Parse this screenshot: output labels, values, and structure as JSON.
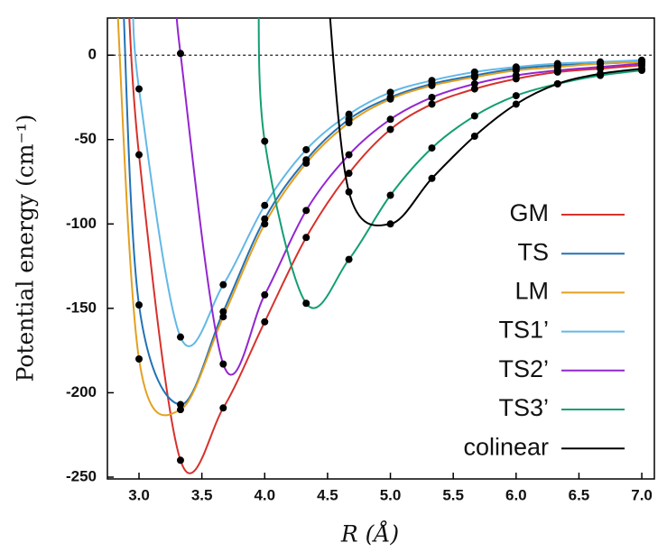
{
  "chart_data": {
    "type": "line",
    "xlabel": "R (Å)",
    "ylabel": "Potential energy (cm⁻¹)",
    "xlim": [
      2.75,
      7.1
    ],
    "ylim": [
      -250,
      22
    ],
    "xticks": [
      {
        "value": 3,
        "label": "3.0"
      },
      3.5,
      {
        "value": 4,
        "label": "4.0"
      },
      4.5,
      {
        "value": 5,
        "label": "5.0"
      },
      5.5,
      {
        "value": 6,
        "label": "6.0"
      },
      6.5,
      {
        "value": 7,
        "label": "7.0"
      }
    ],
    "yticks": [
      0,
      -50,
      -100,
      -150,
      -200,
      -250
    ],
    "zero_line": true,
    "legend": "lower right",
    "series": [
      {
        "name": "GM",
        "color": "#d7312b",
        "x": [
          2.9,
          3.0,
          3.33,
          3.67,
          4.0,
          4.33,
          4.67,
          5.0,
          5.33,
          5.67,
          6.0,
          6.33,
          6.67,
          7.0
        ],
        "values": [
          60,
          -59,
          -240,
          -209,
          -158,
          -108,
          -70,
          -44,
          -29,
          -20,
          -14,
          -10,
          -8,
          -6
        ]
      },
      {
        "name": "TS",
        "color": "#2372b5",
        "x": [
          2.87,
          3.0,
          3.33,
          3.67,
          4.0,
          4.33,
          4.67,
          5.0,
          5.33,
          5.67,
          6.0,
          6.33,
          6.67,
          7.0
        ],
        "values": [
          40,
          -148,
          -207,
          -152,
          -97,
          -62,
          -38,
          -25,
          -17,
          -12,
          -8,
          -6,
          -5,
          -4
        ]
      },
      {
        "name": "LM",
        "color": "#e3a020",
        "x": [
          2.82,
          3.0,
          3.33,
          3.67,
          4.0,
          4.33,
          4.67,
          5.0,
          5.33,
          5.67,
          6.0,
          6.33,
          6.67,
          7.0
        ],
        "values": [
          40,
          -180,
          -210,
          -155,
          -100,
          -64,
          -40,
          -26,
          -18,
          -13,
          -9,
          -7,
          -5,
          -4
        ]
      },
      {
        "name": "TS1’",
        "color": "#63b8e6",
        "x": [
          2.95,
          3.0,
          3.33,
          3.67,
          4.0,
          4.33,
          4.67,
          5.0,
          5.33,
          5.67,
          6.0,
          6.33,
          6.67,
          7.0
        ],
        "values": [
          40,
          -20,
          -167,
          -136,
          -89,
          -56,
          -35,
          -22,
          -15,
          -10,
          -7,
          -5,
          -4,
          -3
        ]
      },
      {
        "name": "TS2’",
        "color": "#9326d0",
        "x": [
          3.3,
          3.33,
          3.67,
          4.0,
          4.33,
          4.67,
          5.0,
          5.33,
          5.67,
          6.0,
          6.33,
          6.67,
          7.0
        ],
        "values": [
          40,
          1,
          -183,
          -142,
          -92,
          -59,
          -38,
          -25,
          -17,
          -12,
          -9,
          -7,
          -5
        ]
      },
      {
        "name": "TS3’",
        "color": "#139e73",
        "x": [
          3.95,
          4.0,
          4.33,
          4.67,
          5.0,
          5.33,
          5.67,
          6.0,
          6.33,
          6.67,
          7.0
        ],
        "values": [
          40,
          -51,
          -147,
          -121,
          -83,
          -55,
          -36,
          -24,
          -17,
          -12,
          -9
        ]
      },
      {
        "name": "colinear",
        "color": "#000000",
        "x": [
          4.5,
          4.67,
          5.0,
          5.33,
          5.67,
          6.0,
          6.33,
          6.67,
          7.0
        ],
        "values": [
          40,
          -81,
          -100,
          -73,
          -48,
          -29,
          -17,
          -11,
          -8
        ]
      }
    ]
  }
}
